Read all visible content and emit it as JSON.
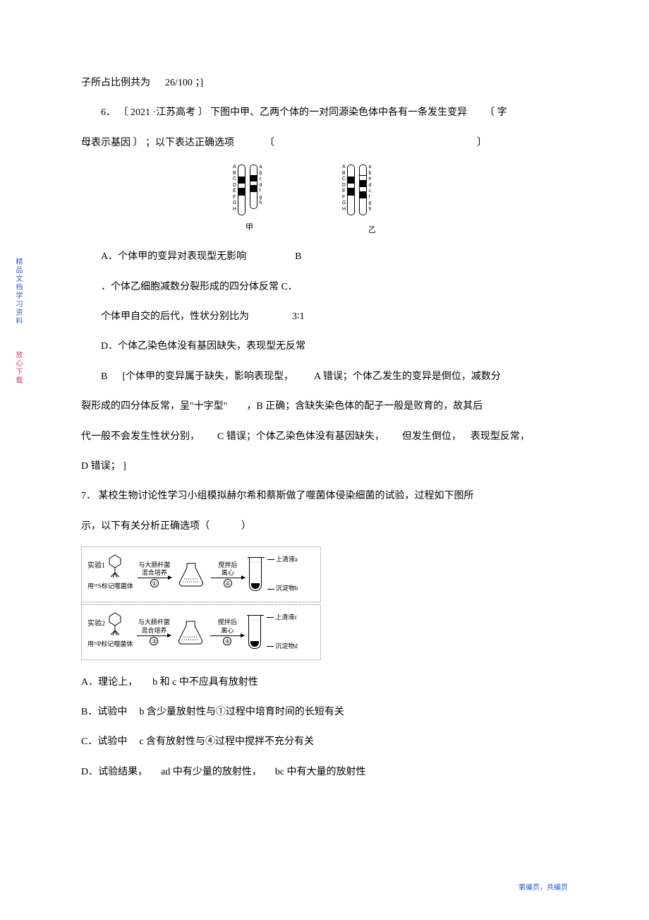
{
  "topline": {
    "text": "子所占比例共为",
    "value": "26/100",
    "suffix": "；]"
  },
  "q6": {
    "num": "6．",
    "source_open": "〔",
    "source": "2021 ·江苏高考",
    "source_close": "〕",
    "stem1": "下图中甲、乙两个体的一对同源染色体中各有一条发生变异",
    "note_open": "〔",
    "note": "字",
    "stem2": "母表示基因",
    "note_close": "〕",
    "tail": "；以下表达正确选项",
    "brk_open": "〔",
    "brk_close": "〕"
  },
  "chrom": {
    "left1": [
      "A",
      "B",
      "C",
      "D",
      "E",
      "F",
      "G",
      "H"
    ],
    "left2": [
      "a",
      "b",
      "c",
      "d",
      "f",
      "g",
      "h"
    ],
    "right1": [
      "A",
      "B",
      "C",
      "D",
      "E",
      "F",
      "G",
      "H"
    ],
    "right2": [
      "a",
      "b",
      "e",
      "d",
      "c",
      "f",
      "g",
      "h"
    ],
    "cap_left": "甲",
    "cap_right": "乙"
  },
  "q6opts": {
    "A": "A．个体甲的变异对表现型无影响",
    "B_mark": "B",
    "B": "．个体乙细胞减数分裂形成的四分体反常  C．",
    "C": "个体甲自交的后代，性状分别比为",
    "ratio": "3∶1",
    "D": "D．个体乙染色体没有基因缺失，表现型无反常"
  },
  "q6ans": {
    "key": "B",
    "open": "[",
    "s1": "个体甲的变异属于缺失，影响表现型，",
    "aerr": "A 错误；个体乙发生的变异是倒位，减数分",
    "s2": "裂形成的四分体反常，呈\"十字型\"",
    "bok": "，B 正确；含缺失染色体的配子一般是败育的，故其后",
    "s3": "代一般不会发生性状分别，",
    "cerr": "C 错误；个体乙染色体没有基因缺失，",
    "s4": "但发生倒位，",
    "s5": "表现型反常，",
    "derr": "D 错误；",
    "close": "]"
  },
  "q7": {
    "num": "7．",
    "stem": "某校生物讨论性学习小组模拟赫尔希和蔡斯做了噬菌体侵染细菌的试验，过程如下图所",
    "stem2": "示，以下有关分析正确选项（",
    "close": "）"
  },
  "exp": {
    "e1": "实验1",
    "e2": "实验2",
    "mix": "与大肠杆菌",
    "mix2": "混合培养",
    "label1": "用³⁵S标记噬菌体",
    "label2": "用³²P标记噬菌体",
    "centrifuge": "搅拌后",
    "centrifuge2": "离心",
    "sup_a": "上清液a",
    "sed_b": "沉淀物b",
    "sup_c": "上清液c",
    "sed_d": "沉淀物d",
    "c1": "①",
    "c2": "②",
    "c3": "③",
    "c4": "④"
  },
  "q7opts": {
    "A": "A．理论上，",
    "A2": "b 和 c 中不应具有放射性",
    "B": "B．试验中",
    "B2": "b 含少量放射性与①过程中培育时间的长短有关",
    "C": "C．试验中",
    "C2": "c 含有放射性与④过程中搅拌不充分有关",
    "D": "D．试验结果，",
    "D2": "ad 中有少量的放射性，",
    "D3": "bc 中有大量的放射性"
  },
  "sidebar": {
    "t1": "精品文档学习资料",
    "t2": "放心下载"
  },
  "footer": {
    "text": "第编页，共编页"
  },
  "colors": {
    "text": "#000000",
    "link": "#3b5bd6",
    "pink": "#c93b7a",
    "footer": "#2952cc",
    "bg": "#ffffff",
    "border": "#888888"
  }
}
